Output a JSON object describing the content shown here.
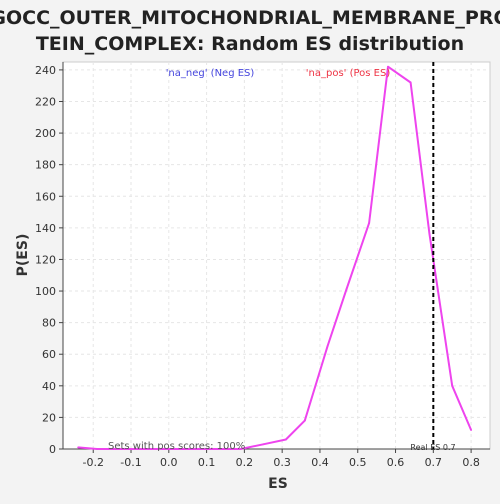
{
  "chart_data": {
    "type": "line",
    "title_line1": "GOCC_OUTER_MITOCHONDRIAL_MEMBRANE_PRO",
    "title_line2": "TEIN_COMPLEX: Random ES distribution",
    "xlabel": "ES",
    "ylabel": "P(ES)",
    "xlim": [
      -0.28,
      0.85
    ],
    "ylim": [
      0,
      245
    ],
    "x_ticks": [
      -0.2,
      -0.1,
      0.0,
      0.1,
      0.2,
      0.3,
      0.4,
      0.5,
      0.6,
      0.7,
      0.8
    ],
    "x_tick_labels": [
      "-0.2",
      "-0.1",
      "0.0",
      "0.1",
      "0.2",
      "0.3",
      "0.4",
      "0.5",
      "0.6",
      "0.7",
      "0.8"
    ],
    "y_ticks": [
      0,
      20,
      40,
      60,
      80,
      100,
      120,
      140,
      160,
      180,
      200,
      220,
      240
    ],
    "y_tick_labels": [
      "0",
      "20",
      "40",
      "60",
      "80",
      "100",
      "120",
      "140",
      "160",
      "180",
      "200",
      "220",
      "240"
    ],
    "grid": true,
    "series": [
      {
        "color": "#ee44ee",
        "x": [
          -0.24,
          -0.19,
          -0.13,
          -0.08,
          -0.02,
          0.03,
          0.08,
          0.14,
          0.19,
          0.25,
          0.31,
          0.36,
          0.42,
          0.47,
          0.53,
          0.58,
          0.64,
          0.69,
          0.75,
          0.8
        ],
        "y": [
          1,
          0,
          0,
          0,
          0,
          0,
          0,
          0,
          0,
          3,
          6,
          18,
          65,
          101,
          143,
          242,
          232,
          136,
          40,
          12
        ]
      }
    ],
    "real_es": 0.7,
    "real_es_label": "Real ES 0.7",
    "legend_neg": "'na_neg' (Neg ES)",
    "legend_pos": "'na_pos' (Pos ES)",
    "legend_neg_color": "#4444dd",
    "legend_pos_color": "#ee3344",
    "footnote": "Sets with pos scores: 100%"
  }
}
